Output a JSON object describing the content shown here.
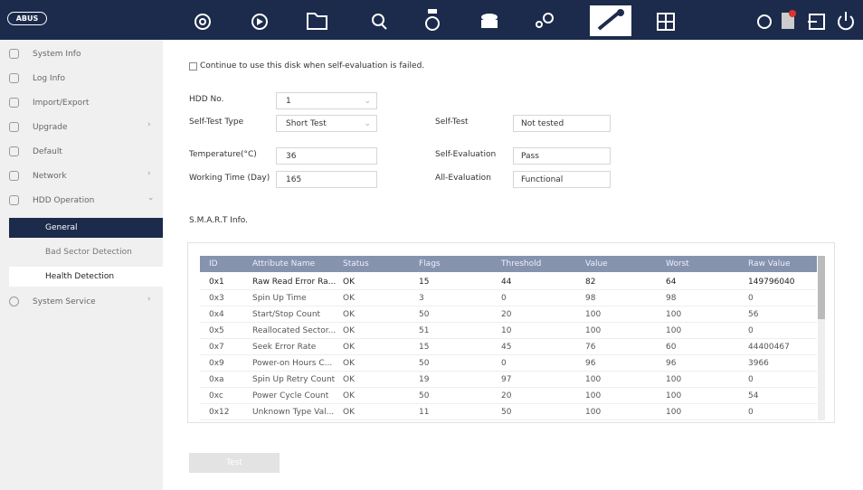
{
  "header": {
    "logo": "ABUS"
  },
  "sidebar": {
    "items": [
      "System Info",
      "Log Info",
      "Import/Export",
      "Upgrade",
      "Default",
      "Network",
      "HDD Operation"
    ],
    "hdd_subitems": [
      "General",
      "Bad Sector Detection",
      "Health Detection"
    ],
    "last_item": "System Service"
  },
  "form": {
    "checkbox_label": "Continue to use this disk when self-evaluation is failed.",
    "left_fields": [
      {
        "label": "HDD No.",
        "value": "1"
      },
      {
        "label": "Self-Test Type",
        "value": "Short Test"
      },
      {
        "label": "Temperature(°C)",
        "value": "36"
      },
      {
        "label": "Working Time (Day)",
        "value": "165"
      }
    ],
    "right_fields": [
      {
        "label": "Self-Test",
        "value": "Not tested"
      },
      {
        "label": "Self-Evaluation",
        "value": "Pass"
      },
      {
        "label": "All-Evaluation",
        "value": "Functional"
      }
    ]
  },
  "smart": {
    "title": "S.M.A.R.T Info.",
    "columns": [
      "ID",
      "Attribute Name",
      "Status",
      "Flags",
      "Threshold",
      "Value",
      "Worst",
      "Raw Value"
    ],
    "rows": [
      [
        "0x1",
        "Raw Read Error Ra...",
        "OK",
        15,
        44,
        82,
        64,
        149796040
      ],
      [
        "0x3",
        "Spin Up Time",
        "OK",
        3,
        0,
        98,
        98,
        0
      ],
      [
        "0x4",
        "Start/Stop Count",
        "OK",
        50,
        20,
        100,
        100,
        56
      ],
      [
        "0x5",
        "Reallocated Sector...",
        "OK",
        51,
        10,
        100,
        100,
        0
      ],
      [
        "0x7",
        "Seek Error Rate",
        "OK",
        15,
        45,
        76,
        60,
        44400467
      ],
      [
        "0x9",
        "Power-on Hours C...",
        "OK",
        50,
        0,
        96,
        96,
        3966
      ],
      [
        "0xa",
        "Spin Up Retry Count",
        "OK",
        19,
        97,
        100,
        100,
        0
      ],
      [
        "0xc",
        "Power Cycle Count",
        "OK",
        50,
        20,
        100,
        100,
        54
      ],
      [
        "0x12",
        "Unknown Type Val...",
        "OK",
        11,
        50,
        100,
        100,
        0
      ]
    ]
  },
  "button": "Test"
}
